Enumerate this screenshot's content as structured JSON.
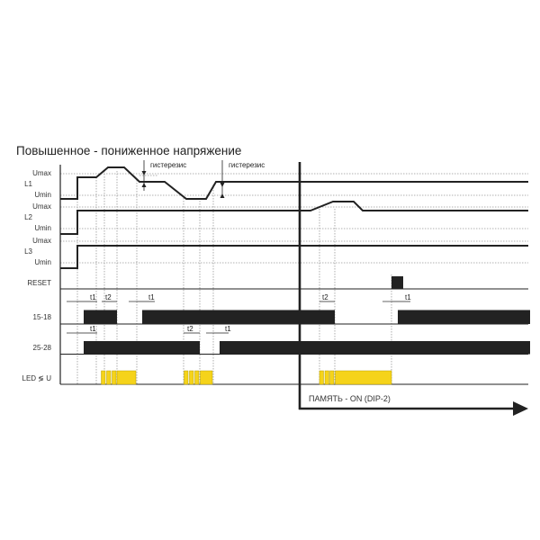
{
  "diagram": {
    "title": "Повышенное - пониженное напряжение",
    "signals": {
      "L1": {
        "label": "L1",
        "umax": "Umax",
        "umin": "Umin"
      },
      "L2": {
        "label": "L2",
        "umax": "Umax",
        "umin": "Umin"
      },
      "L3": {
        "label": "L3",
        "umax": "Umax",
        "umin": "Umin"
      }
    },
    "rows": {
      "reset": "RESET",
      "contact_15_18": "15-18",
      "contact_25_28": "25-28",
      "led": "LED ≶ U"
    },
    "hysteresis_label": "гистерезис",
    "timers": {
      "t1": "t1",
      "t2": "t2"
    },
    "memory_label": "ПАМЯТЬ  - ON (DIP-2)",
    "colors": {
      "waveform": "#222222",
      "led": "#f5d31a",
      "grid": "#999999"
    }
  }
}
